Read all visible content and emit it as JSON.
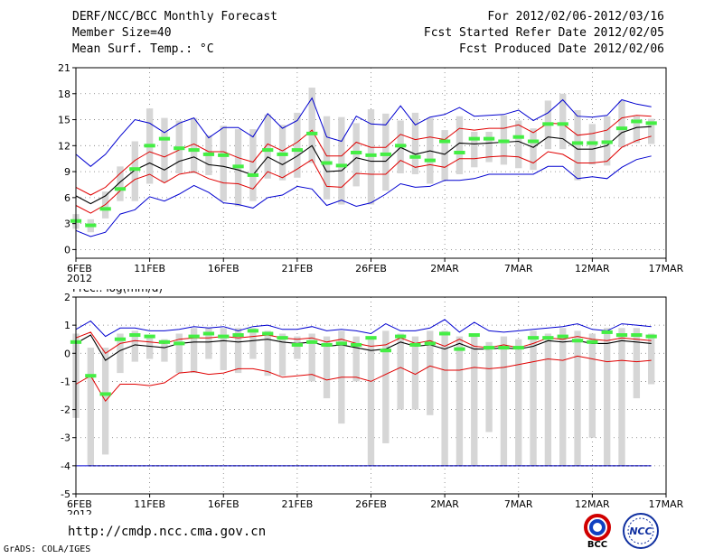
{
  "header": {
    "title": "DERF/NCC/BCC Monthly Forecast",
    "member_size": "Member Size=40",
    "variable": "Mean Surf. Temp.: °C",
    "period": "For 2012/02/06-2012/03/16",
    "started": "Fcst Started Refer Date 2012/02/05",
    "produced": "Fcst Produced Date 2012/02/06"
  },
  "footer": {
    "url": "http://cmdp.ncc.cma.gov.cn",
    "grads": "GrADS: COLA/IGES",
    "logo1_text": "BCC",
    "logo2_text": "NCC"
  },
  "colors": {
    "mean": "#000000",
    "spread": "#e00000",
    "envelope": "#0000d0",
    "obs": "#44ee44",
    "bars": "#d6d6d6",
    "axis": "#000000"
  },
  "chart_data": [
    {
      "type": "line",
      "title": "Mean Surf. Temp.: °C",
      "xlabel": "",
      "ylabel": "°C",
      "ylim": [
        -1,
        21
      ],
      "yticks": [
        0,
        3,
        6,
        9,
        12,
        15,
        18,
        21
      ],
      "xticks": [
        {
          "day": 0,
          "label": "6FEB",
          "sub": "2012"
        },
        {
          "day": 5,
          "label": "11FEB"
        },
        {
          "day": 10,
          "label": "16FEB"
        },
        {
          "day": 15,
          "label": "21FEB"
        },
        {
          "day": 20,
          "label": "26FEB"
        },
        {
          "day": 25,
          "label": "2MAR"
        },
        {
          "day": 30,
          "label": "7MAR"
        },
        {
          "day": 35,
          "label": "12MAR"
        },
        {
          "day": 40,
          "label": "17MAR"
        }
      ],
      "xlim": [
        0,
        40
      ],
      "days": [
        0,
        1,
        2,
        3,
        4,
        5,
        6,
        7,
        8,
        9,
        10,
        11,
        12,
        13,
        14,
        15,
        16,
        17,
        18,
        19,
        20,
        21,
        22,
        23,
        24,
        25,
        26,
        27,
        28,
        29,
        30,
        31,
        32,
        33,
        34,
        35,
        36,
        37,
        38,
        39
      ],
      "series": [
        {
          "name": "ensemble mean",
          "values": [
            6.2,
            5.3,
            6.2,
            7.8,
            9.2,
            10.0,
            9.2,
            10.2,
            10.7,
            9.8,
            9.6,
            9.2,
            8.6,
            10.7,
            9.8,
            10.8,
            12.0,
            9.0,
            9.1,
            10.6,
            10.2,
            10.2,
            11.8,
            11.0,
            11.4,
            11.0,
            12.3,
            12.2,
            12.3,
            12.4,
            12.5,
            11.8,
            13.0,
            12.8,
            11.6,
            11.6,
            12.0,
            13.5,
            14.1,
            14.2
          ]
        },
        {
          "name": "mean + spread",
          "values": [
            7.2,
            6.3,
            7.2,
            8.8,
            10.3,
            11.3,
            10.7,
            11.5,
            12.2,
            11.3,
            11.3,
            10.6,
            10.1,
            12.2,
            11.4,
            12.4,
            13.8,
            10.8,
            10.8,
            12.4,
            11.8,
            11.8,
            13.3,
            12.7,
            13.0,
            12.7,
            14.0,
            13.8,
            14.0,
            14.0,
            14.4,
            13.5,
            14.6,
            14.5,
            13.2,
            13.4,
            13.8,
            15.2,
            15.5,
            15.4
          ]
        },
        {
          "name": "mean - spread",
          "values": [
            5.1,
            4.2,
            5.2,
            6.8,
            8.1,
            8.7,
            7.7,
            8.7,
            9.0,
            8.2,
            7.7,
            7.6,
            7.0,
            9.0,
            8.3,
            9.3,
            10.4,
            7.3,
            7.2,
            8.8,
            8.7,
            8.7,
            10.3,
            9.5,
            9.8,
            9.5,
            10.5,
            10.5,
            10.7,
            10.8,
            10.7,
            10.0,
            11.3,
            11.0,
            10.0,
            10.0,
            10.2,
            11.8,
            12.6,
            13.1
          ]
        },
        {
          "name": "ensemble max",
          "values": [
            11.0,
            9.6,
            11.0,
            13.1,
            15.0,
            14.6,
            13.5,
            14.6,
            15.2,
            12.9,
            14.1,
            14.1,
            13.0,
            15.7,
            14.0,
            14.9,
            17.5,
            13.0,
            12.5,
            15.4,
            14.5,
            14.4,
            16.6,
            14.4,
            15.3,
            15.6,
            16.4,
            15.4,
            15.5,
            15.6,
            16.1,
            14.9,
            15.8,
            17.3,
            15.4,
            15.3,
            15.5,
            17.3,
            16.8,
            16.5
          ]
        },
        {
          "name": "ensemble min",
          "values": [
            2.2,
            1.5,
            2.0,
            4.1,
            4.6,
            6.1,
            5.6,
            6.4,
            7.4,
            6.6,
            5.4,
            5.2,
            4.8,
            6.0,
            6.3,
            7.3,
            7.0,
            5.1,
            5.7,
            5.0,
            5.4,
            6.4,
            7.6,
            7.2,
            7.3,
            8.0,
            8.0,
            8.2,
            8.7,
            8.7,
            8.7,
            8.7,
            9.6,
            9.6,
            8.2,
            8.4,
            8.2,
            9.5,
            10.4,
            10.8
          ]
        },
        {
          "name": "observed/green",
          "values": [
            3.3,
            2.8,
            4.7,
            7.0,
            9.3,
            12.0,
            12.8,
            11.7,
            11.5,
            11.0,
            10.9,
            9.6,
            8.6,
            11.5,
            11.0,
            11.5,
            13.4,
            10.0,
            9.7,
            11.2,
            10.9,
            11.0,
            12.0,
            10.7,
            10.3,
            12.5,
            11.2,
            12.8,
            12.8,
            12.5,
            13.0,
            12.5,
            14.5,
            14.5,
            12.3,
            12.3,
            12.4,
            14.0,
            14.8,
            14.6
          ]
        }
      ],
      "bars": {
        "name": "member range",
        "low": [
          2.4,
          2.0,
          3.6,
          5.6,
          5.6,
          7.6,
          7.8,
          8.8,
          8.8,
          8.6,
          5.6,
          5.0,
          5.6,
          8.2,
          8.0,
          8.3,
          10.0,
          5.8,
          5.2,
          7.3,
          5.2,
          6.8,
          8.8,
          8.7,
          7.6,
          8.0,
          8.7,
          9.5,
          10.1,
          9.8,
          9.4,
          9.2,
          11.6,
          11.6,
          8.0,
          9.8,
          9.7,
          11.8,
          12.3,
          12.2
        ],
        "high": [
          4.1,
          3.5,
          6.7,
          9.6,
          12.5,
          16.3,
          15.2,
          14.9,
          15.2,
          13.2,
          14.3,
          13.9,
          13.9,
          15.6,
          14.4,
          15.8,
          18.7,
          15.4,
          15.3,
          14.6,
          16.2,
          15.7,
          14.9,
          15.8,
          15.2,
          13.8,
          15.4,
          13.6,
          13.6,
          15.5,
          14.9,
          14.0,
          17.2,
          18.0,
          16.1,
          14.5,
          15.4,
          17.2,
          15.4,
          15.1
        ]
      }
    },
    {
      "type": "line",
      "title": "Prec.: log(mm/d)",
      "xlabel": "",
      "ylabel": "log(mm/d)",
      "ylim": [
        -5,
        2
      ],
      "yticks": [
        -5,
        -4,
        -3,
        -2,
        -1,
        0,
        1,
        2
      ],
      "xticks": [
        {
          "day": 0,
          "label": "6FEB",
          "sub": "2012"
        },
        {
          "day": 5,
          "label": "11FEB"
        },
        {
          "day": 10,
          "label": "16FEB"
        },
        {
          "day": 15,
          "label": "21FEB"
        },
        {
          "day": 20,
          "label": "26FEB"
        },
        {
          "day": 25,
          "label": "2MAR"
        },
        {
          "day": 30,
          "label": "7MAR"
        },
        {
          "day": 35,
          "label": "12MAR"
        },
        {
          "day": 40,
          "label": "17MAR"
        }
      ],
      "xlim": [
        0,
        40
      ],
      "days": [
        0,
        1,
        2,
        3,
        4,
        5,
        6,
        7,
        8,
        9,
        10,
        11,
        12,
        13,
        14,
        15,
        16,
        17,
        18,
        19,
        20,
        21,
        22,
        23,
        24,
        25,
        26,
        27,
        28,
        29,
        30,
        31,
        32,
        33,
        34,
        35,
        36,
        37,
        38,
        39
      ],
      "series": [
        {
          "name": "ensemble mean",
          "values": [
            0.35,
            0.65,
            -0.25,
            0.1,
            0.3,
            0.25,
            0.2,
            0.35,
            0.4,
            0.4,
            0.45,
            0.4,
            0.45,
            0.5,
            0.4,
            0.35,
            0.4,
            0.25,
            0.3,
            0.2,
            0.1,
            0.15,
            0.4,
            0.25,
            0.3,
            0.15,
            0.35,
            0.15,
            0.15,
            0.2,
            0.15,
            0.25,
            0.45,
            0.4,
            0.45,
            0.35,
            0.35,
            0.45,
            0.4,
            0.35
          ]
        },
        {
          "name": "mean + spread",
          "values": [
            0.55,
            0.75,
            0.0,
            0.35,
            0.45,
            0.4,
            0.35,
            0.5,
            0.55,
            0.55,
            0.6,
            0.55,
            0.6,
            0.65,
            0.55,
            0.5,
            0.55,
            0.4,
            0.5,
            0.35,
            0.25,
            0.3,
            0.55,
            0.35,
            0.45,
            0.25,
            0.5,
            0.25,
            0.2,
            0.3,
            0.2,
            0.35,
            0.55,
            0.5,
            0.6,
            0.5,
            0.45,
            0.55,
            0.5,
            0.45
          ]
        },
        {
          "name": "mean - spread",
          "values": [
            -1.1,
            -0.8,
            -1.7,
            -1.1,
            -1.1,
            -1.15,
            -1.05,
            -0.7,
            -0.65,
            -0.75,
            -0.7,
            -0.55,
            -0.55,
            -0.65,
            -0.85,
            -0.8,
            -0.75,
            -0.95,
            -0.85,
            -0.85,
            -1.0,
            -0.75,
            -0.5,
            -0.75,
            -0.45,
            -0.6,
            -0.6,
            -0.5,
            -0.55,
            -0.5,
            -0.4,
            -0.3,
            -0.2,
            -0.25,
            -0.1,
            -0.2,
            -0.3,
            -0.25,
            -0.3,
            -0.25
          ]
        },
        {
          "name": "ensemble max",
          "values": [
            0.85,
            1.15,
            0.6,
            0.9,
            0.9,
            0.8,
            0.8,
            0.85,
            0.95,
            0.9,
            0.95,
            0.8,
            0.95,
            1.0,
            0.85,
            0.85,
            0.95,
            0.8,
            0.85,
            0.8,
            0.7,
            1.05,
            0.8,
            0.8,
            0.9,
            1.2,
            0.75,
            1.1,
            0.8,
            0.75,
            0.8,
            0.85,
            0.9,
            0.95,
            1.05,
            0.85,
            0.8,
            1.05,
            1.0,
            0.95
          ]
        },
        {
          "name": "ensemble min",
          "values": [
            -4.0,
            -4.0,
            -4.0,
            -4.0,
            -4.0,
            -4.0,
            -4.0,
            -4.0,
            -4.0,
            -4.0,
            -4.0,
            -4.0,
            -4.0,
            -4.0,
            -4.0,
            -4.0,
            -4.0,
            -4.0,
            -4.0,
            -4.0,
            -4.0,
            -4.0,
            -4.0,
            -4.0,
            -4.0,
            -4.0,
            -4.0,
            -4.0,
            -4.0,
            -4.0,
            -4.0,
            -4.0,
            -4.0,
            -4.0,
            -4.0,
            -4.0,
            -4.0,
            -4.0,
            -4.0,
            -4.0
          ]
        },
        {
          "name": "observed/green",
          "values": [
            0.4,
            -0.8,
            -1.45,
            0.5,
            0.65,
            0.6,
            0.4,
            0.35,
            0.6,
            0.7,
            0.6,
            0.65,
            0.8,
            0.7,
            0.55,
            0.3,
            0.4,
            0.3,
            0.35,
            0.3,
            0.55,
            0.1,
            0.6,
            0.3,
            0.35,
            0.7,
            0.15,
            0.65,
            0.2,
            0.2,
            0.2,
            0.55,
            0.55,
            0.6,
            0.45,
            0.4,
            0.75,
            0.65,
            0.65,
            0.6
          ]
        }
      ],
      "bars": {
        "name": "member range",
        "low": [
          -2.3,
          -4.0,
          -3.6,
          -0.7,
          -0.3,
          -0.2,
          -0.3,
          -0.7,
          -0.7,
          -0.2,
          -0.6,
          -0.7,
          -0.2,
          -0.8,
          -0.8,
          -0.2,
          -1.0,
          -1.6,
          -2.5,
          -1.0,
          -4.0,
          -3.2,
          -2.0,
          -2.0,
          -2.2,
          -4.0,
          -4.0,
          -4.0,
          -2.8,
          -4.0,
          -4.0,
          -4.0,
          -4.0,
          -4.0,
          -4.0,
          -3.0,
          -4.0,
          -4.0,
          -1.6,
          -1.1
        ],
        "high": [
          0.7,
          0.2,
          0.2,
          0.7,
          0.8,
          0.6,
          0.5,
          0.7,
          0.9,
          0.9,
          0.9,
          0.9,
          0.9,
          0.8,
          0.7,
          0.6,
          0.7,
          0.6,
          0.8,
          0.6,
          0.5,
          0.8,
          0.7,
          0.6,
          0.8,
          0.8,
          0.6,
          0.7,
          0.4,
          0.6,
          0.5,
          0.8,
          0.7,
          0.9,
          0.8,
          0.7,
          0.9,
          0.9,
          0.9,
          0.7
        ]
      }
    }
  ]
}
